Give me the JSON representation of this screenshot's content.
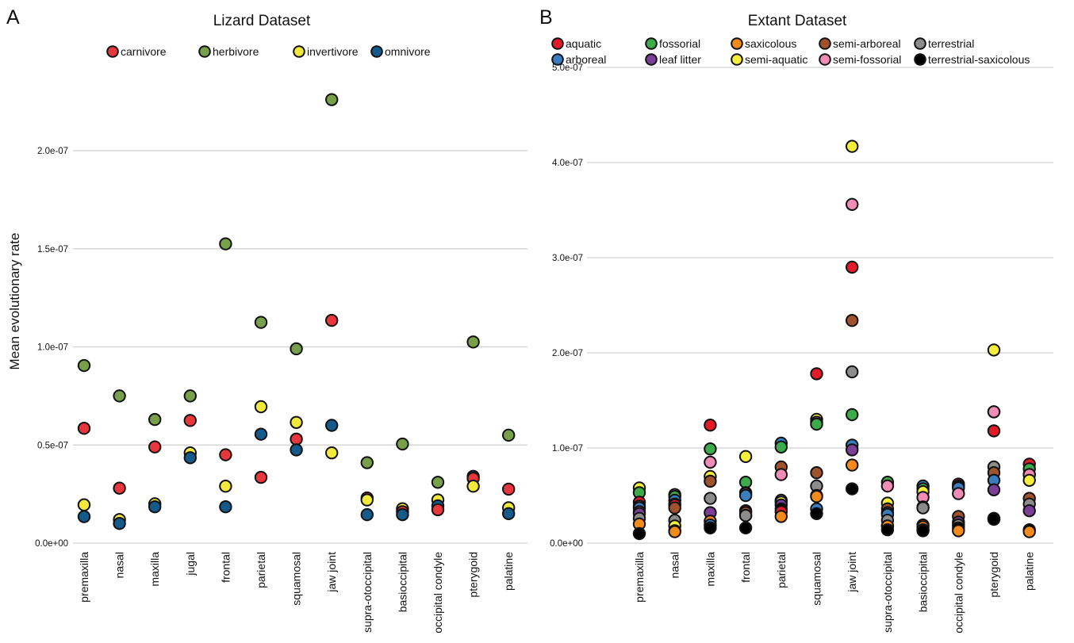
{
  "panels": [
    {
      "letter": "A",
      "title": "Lizard Dataset",
      "ylabel": "Mean evolutionary rate",
      "xtick_labels": [
        "premaxilla",
        "nasal",
        "maxilla",
        "jugal",
        "frontal",
        "parietal",
        "squamosal",
        "jaw joint",
        "supra-otoccipital",
        "basioccipital",
        "occipital condyle",
        "pterygoid",
        "palatine"
      ],
      "ytick_labels": [
        "0.0e+00",
        "0.5e-07",
        "1.0e-07",
        "1.5e-07",
        "2.0e-07"
      ]
    },
    {
      "letter": "B",
      "title": "Extant Dataset",
      "ylabel": "",
      "xtick_labels": [
        "premaxilla",
        "nasal",
        "maxilla",
        "frontal",
        "parietal",
        "squamosal",
        "jaw joint",
        "supra-otoccipital",
        "basioccipital",
        "occipital condyle",
        "pterygoid",
        "palatine"
      ],
      "ytick_labels": [
        "0.0e+00",
        "1.0e-07",
        "2.0e-07",
        "3.0e-07",
        "4.0e-07",
        "5.0e-07"
      ]
    }
  ],
  "chart_data": [
    {
      "type": "scatter",
      "title": "Lizard Dataset",
      "xlabel": "",
      "ylabel": "Mean evolutionary rate",
      "ylim": [
        0,
        2.3e-07
      ],
      "yticks": [
        0,
        5e-08,
        1e-07,
        1.5e-07,
        2e-07
      ],
      "grid": true,
      "legend": "top",
      "categories": [
        "premaxilla",
        "nasal",
        "maxilla",
        "jugal",
        "frontal",
        "parietal",
        "squamosal",
        "jaw joint",
        "supra-otoccipital",
        "basioccipital",
        "occipital condyle",
        "pterygoid",
        "palatine"
      ],
      "series": [
        {
          "name": "carnivore",
          "color": "#e8373c",
          "values": [
            5.85e-08,
            2.8e-08,
            4.9e-08,
            6.25e-08,
            4.5e-08,
            3.35e-08,
            5.3e-08,
            1.135e-07,
            2.3e-08,
            1.6e-08,
            1.7e-08,
            3.3e-08,
            2.75e-08
          ]
        },
        {
          "name": "herbivore",
          "color": "#78a04a",
          "values": [
            9.05e-08,
            7.5e-08,
            6.3e-08,
            7.5e-08,
            1.525e-07,
            1.125e-07,
            9.9e-08,
            2.26e-07,
            4.1e-08,
            5.05e-08,
            3.1e-08,
            1.025e-07,
            5.5e-08
          ]
        },
        {
          "name": "invertivore",
          "color": "#f2ea3b",
          "values": [
            1.95e-08,
            1.2e-08,
            2e-08,
            4.6e-08,
            2.9e-08,
            6.95e-08,
            6.15e-08,
            4.6e-08,
            2.2e-08,
            1.75e-08,
            2.2e-08,
            2.9e-08,
            1.8e-08
          ]
        },
        {
          "name": "omnivore",
          "color": "#145b8c",
          "values": [
            1.35e-08,
            1e-08,
            1.85e-08,
            4.35e-08,
            1.85e-08,
            5.55e-08,
            4.75e-08,
            6e-08,
            1.45e-08,
            1.45e-08,
            1.9e-08,
            3.4e-08,
            1.5e-08
          ]
        }
      ]
    },
    {
      "type": "scatter",
      "title": "Extant Dataset",
      "xlabel": "",
      "ylabel": "",
      "ylim": [
        0,
        5e-07
      ],
      "yticks": [
        0,
        1e-07,
        2e-07,
        3e-07,
        4e-07,
        5e-07
      ],
      "grid": true,
      "legend": "top",
      "categories": [
        "premaxilla",
        "nasal",
        "maxilla",
        "frontal",
        "parietal",
        "squamosal",
        "jaw joint",
        "supra-otoccipital",
        "basioccipital",
        "occipital condyle",
        "pterygoid",
        "palatine"
      ],
      "series": [
        {
          "name": "aquatic",
          "color": "#e31a2a",
          "values": [
            4.3e-08,
            4e-08,
            1.24e-07,
            3.4e-08,
            3.3e-08,
            1.78e-07,
            2.9e-07,
            1.8e-08,
            1.4e-08,
            6.2e-08,
            1.18e-07,
            8.3e-08
          ]
        },
        {
          "name": "arboreal",
          "color": "#3b7ec0",
          "values": [
            3.7e-08,
            4.5e-08,
            1.9e-08,
            5e-08,
            1.05e-07,
            3.6e-08,
            1.03e-07,
            3e-08,
            6e-08,
            5.8e-08,
            6.6e-08,
            7.2e-08
          ]
        },
        {
          "name": "fossorial",
          "color": "#3dab4a",
          "values": [
            5.3e-08,
            4.9e-08,
            9.9e-08,
            6.4e-08,
            1.01e-07,
            1.25e-07,
            1.35e-07,
            6.4e-08,
            5.7e-08,
            6e-08,
            1.38e-07,
            7.8e-08
          ]
        },
        {
          "name": "leaf litter",
          "color": "#7b3f98",
          "values": [
            3.1e-08,
            4.1e-08,
            3.2e-08,
            5.3e-08,
            4e-08,
            5e-08,
            9.8e-08,
            3.2e-08,
            3.8e-08,
            2.2e-08,
            5.6e-08,
            3.4e-08
          ]
        },
        {
          "name": "saxicolous",
          "color": "#f28a1c",
          "values": [
            2e-08,
            1.2e-08,
            2.3e-08,
            2.9e-08,
            2.8e-08,
            4.9e-08,
            8.2e-08,
            1.8e-08,
            1.7e-08,
            1.3e-08,
            2.6e-08,
            1.2e-08
          ]
        },
        {
          "name": "semi-aquatic",
          "color": "#f5ee3a",
          "values": [
            5.8e-08,
            1.8e-08,
            7e-08,
            9.1e-08,
            4.3e-08,
            1.3e-07,
            4.17e-07,
            4.2e-08,
            5.4e-08,
            5.9e-08,
            2.03e-07,
            6.6e-08
          ]
        },
        {
          "name": "semi-arboreal",
          "color": "#a0522d",
          "values": [
            3.9e-08,
            3.7e-08,
            6.5e-08,
            3.2e-08,
            8e-08,
            7.4e-08,
            2.34e-07,
            3.6e-08,
            1.9e-08,
            2.8e-08,
            7.4e-08,
            4.7e-08
          ]
        },
        {
          "name": "semi-fossorial",
          "color": "#f08cb6",
          "values": [
            3.3e-08,
            5.1e-08,
            8.5e-08,
            5.2e-08,
            7.2e-08,
            1.27e-07,
            3.56e-07,
            6e-08,
            4.8e-08,
            5.2e-08,
            1.38e-07,
            7.2e-08
          ]
        },
        {
          "name": "terrestrial",
          "color": "#8c8c8c",
          "values": [
            2.6e-08,
            2.4e-08,
            4.7e-08,
            2.9e-08,
            4.5e-08,
            6e-08,
            1.8e-07,
            2.4e-08,
            3.7e-08,
            1.9e-08,
            8e-08,
            4.1e-08
          ]
        },
        {
          "name": "terrestrial-saxicolous",
          "color": "#000000",
          "values": [
            1e-08,
            1.3e-08,
            1.6e-08,
            1.6e-08,
            3.6e-08,
            3.1e-08,
            5.7e-08,
            1.4e-08,
            1.3e-08,
            1.6e-08,
            2.5e-08,
            1.4e-08
          ]
        }
      ]
    }
  ]
}
